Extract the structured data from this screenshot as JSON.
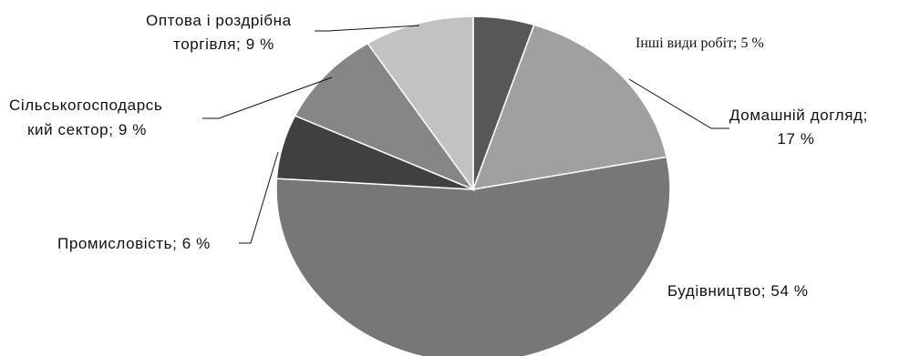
{
  "chart_data": {
    "type": "pie",
    "title": "",
    "slices": [
      {
        "name": "Інші види робіт",
        "value": 5,
        "label": "Інші види робіт; 5 %",
        "color": "#575757"
      },
      {
        "name": "Домашній догляд",
        "value": 17,
        "label_lines": [
          "Домашній догляд;",
          "17 %"
        ],
        "color": "#a0a0a0"
      },
      {
        "name": "Будівництво",
        "value": 54,
        "label": "Будівництво; 54 %",
        "color": "#777777"
      },
      {
        "name": "Промисловість",
        "value": 6,
        "label": "Промисловість; 6 %",
        "color": "#404040"
      },
      {
        "name": "Сільськогосподарський сектор",
        "value": 9,
        "label_lines": [
          "Сільськогосподарсь",
          "кий сектор; 9 %"
        ],
        "color": "#868686"
      },
      {
        "name": "Оптова і роздрібна торгівля",
        "value": 9,
        "label_lines": [
          "Оптова і роздрібна",
          "торгівля; 9 %"
        ],
        "color": "#c2c2c2"
      }
    ]
  }
}
